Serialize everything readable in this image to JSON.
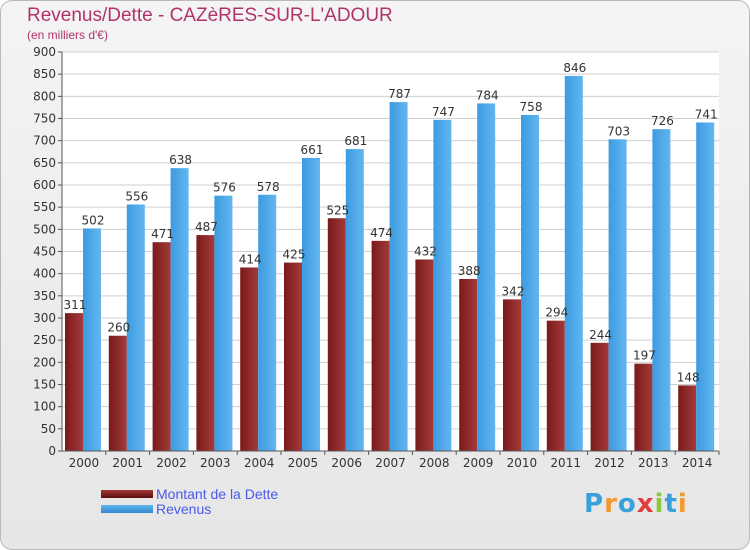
{
  "header": {
    "title": "Revenus/Dette - CAZèRES-SUR-L'ADOUR",
    "subtitle": "(en milliers d'€)"
  },
  "legend": {
    "debt_label": "Montant de la Dette",
    "revenue_label": "Revenus"
  },
  "logo": {
    "letters": [
      "P",
      "r",
      "o",
      "x",
      "i",
      "t",
      "i"
    ],
    "colors": [
      "#3aa0dc",
      "#f29a2e",
      "#3aa0dc",
      "#e23c3c",
      "#8cc63e",
      "#3aa0dc",
      "#f29a2e"
    ]
  },
  "colors": {
    "debt": "#7a1a1a",
    "debt_light": "#a43a3a",
    "revenue": "#3d9be0",
    "revenue_light": "#62b6f0",
    "title": "#b0336a",
    "legend_text": "#4a5aeb",
    "grid": "#cfcfcf"
  },
  "chart_data": {
    "type": "bar",
    "title": "Revenus/Dette - CAZèRES-SUR-L'ADOUR",
    "subtitle": "(en milliers d'€)",
    "xlabel": "",
    "ylabel": "",
    "ylim": [
      0,
      900
    ],
    "yticks": [
      0,
      50,
      100,
      150,
      200,
      250,
      300,
      350,
      400,
      450,
      500,
      550,
      600,
      650,
      700,
      750,
      800,
      850,
      900
    ],
    "grid": true,
    "legend_position": "bottom-left",
    "categories": [
      "2000",
      "2001",
      "2002",
      "2003",
      "2004",
      "2005",
      "2006",
      "2007",
      "2008",
      "2009",
      "2010",
      "2011",
      "2012",
      "2013",
      "2014"
    ],
    "series": [
      {
        "name": "Montant de la Dette",
        "values": [
          311,
          260,
          471,
          487,
          414,
          425,
          525,
          474,
          432,
          388,
          342,
          294,
          244,
          197,
          148
        ]
      },
      {
        "name": "Revenus",
        "values": [
          502,
          556,
          638,
          576,
          578,
          661,
          681,
          787,
          747,
          784,
          758,
          846,
          703,
          726,
          741
        ]
      }
    ]
  }
}
